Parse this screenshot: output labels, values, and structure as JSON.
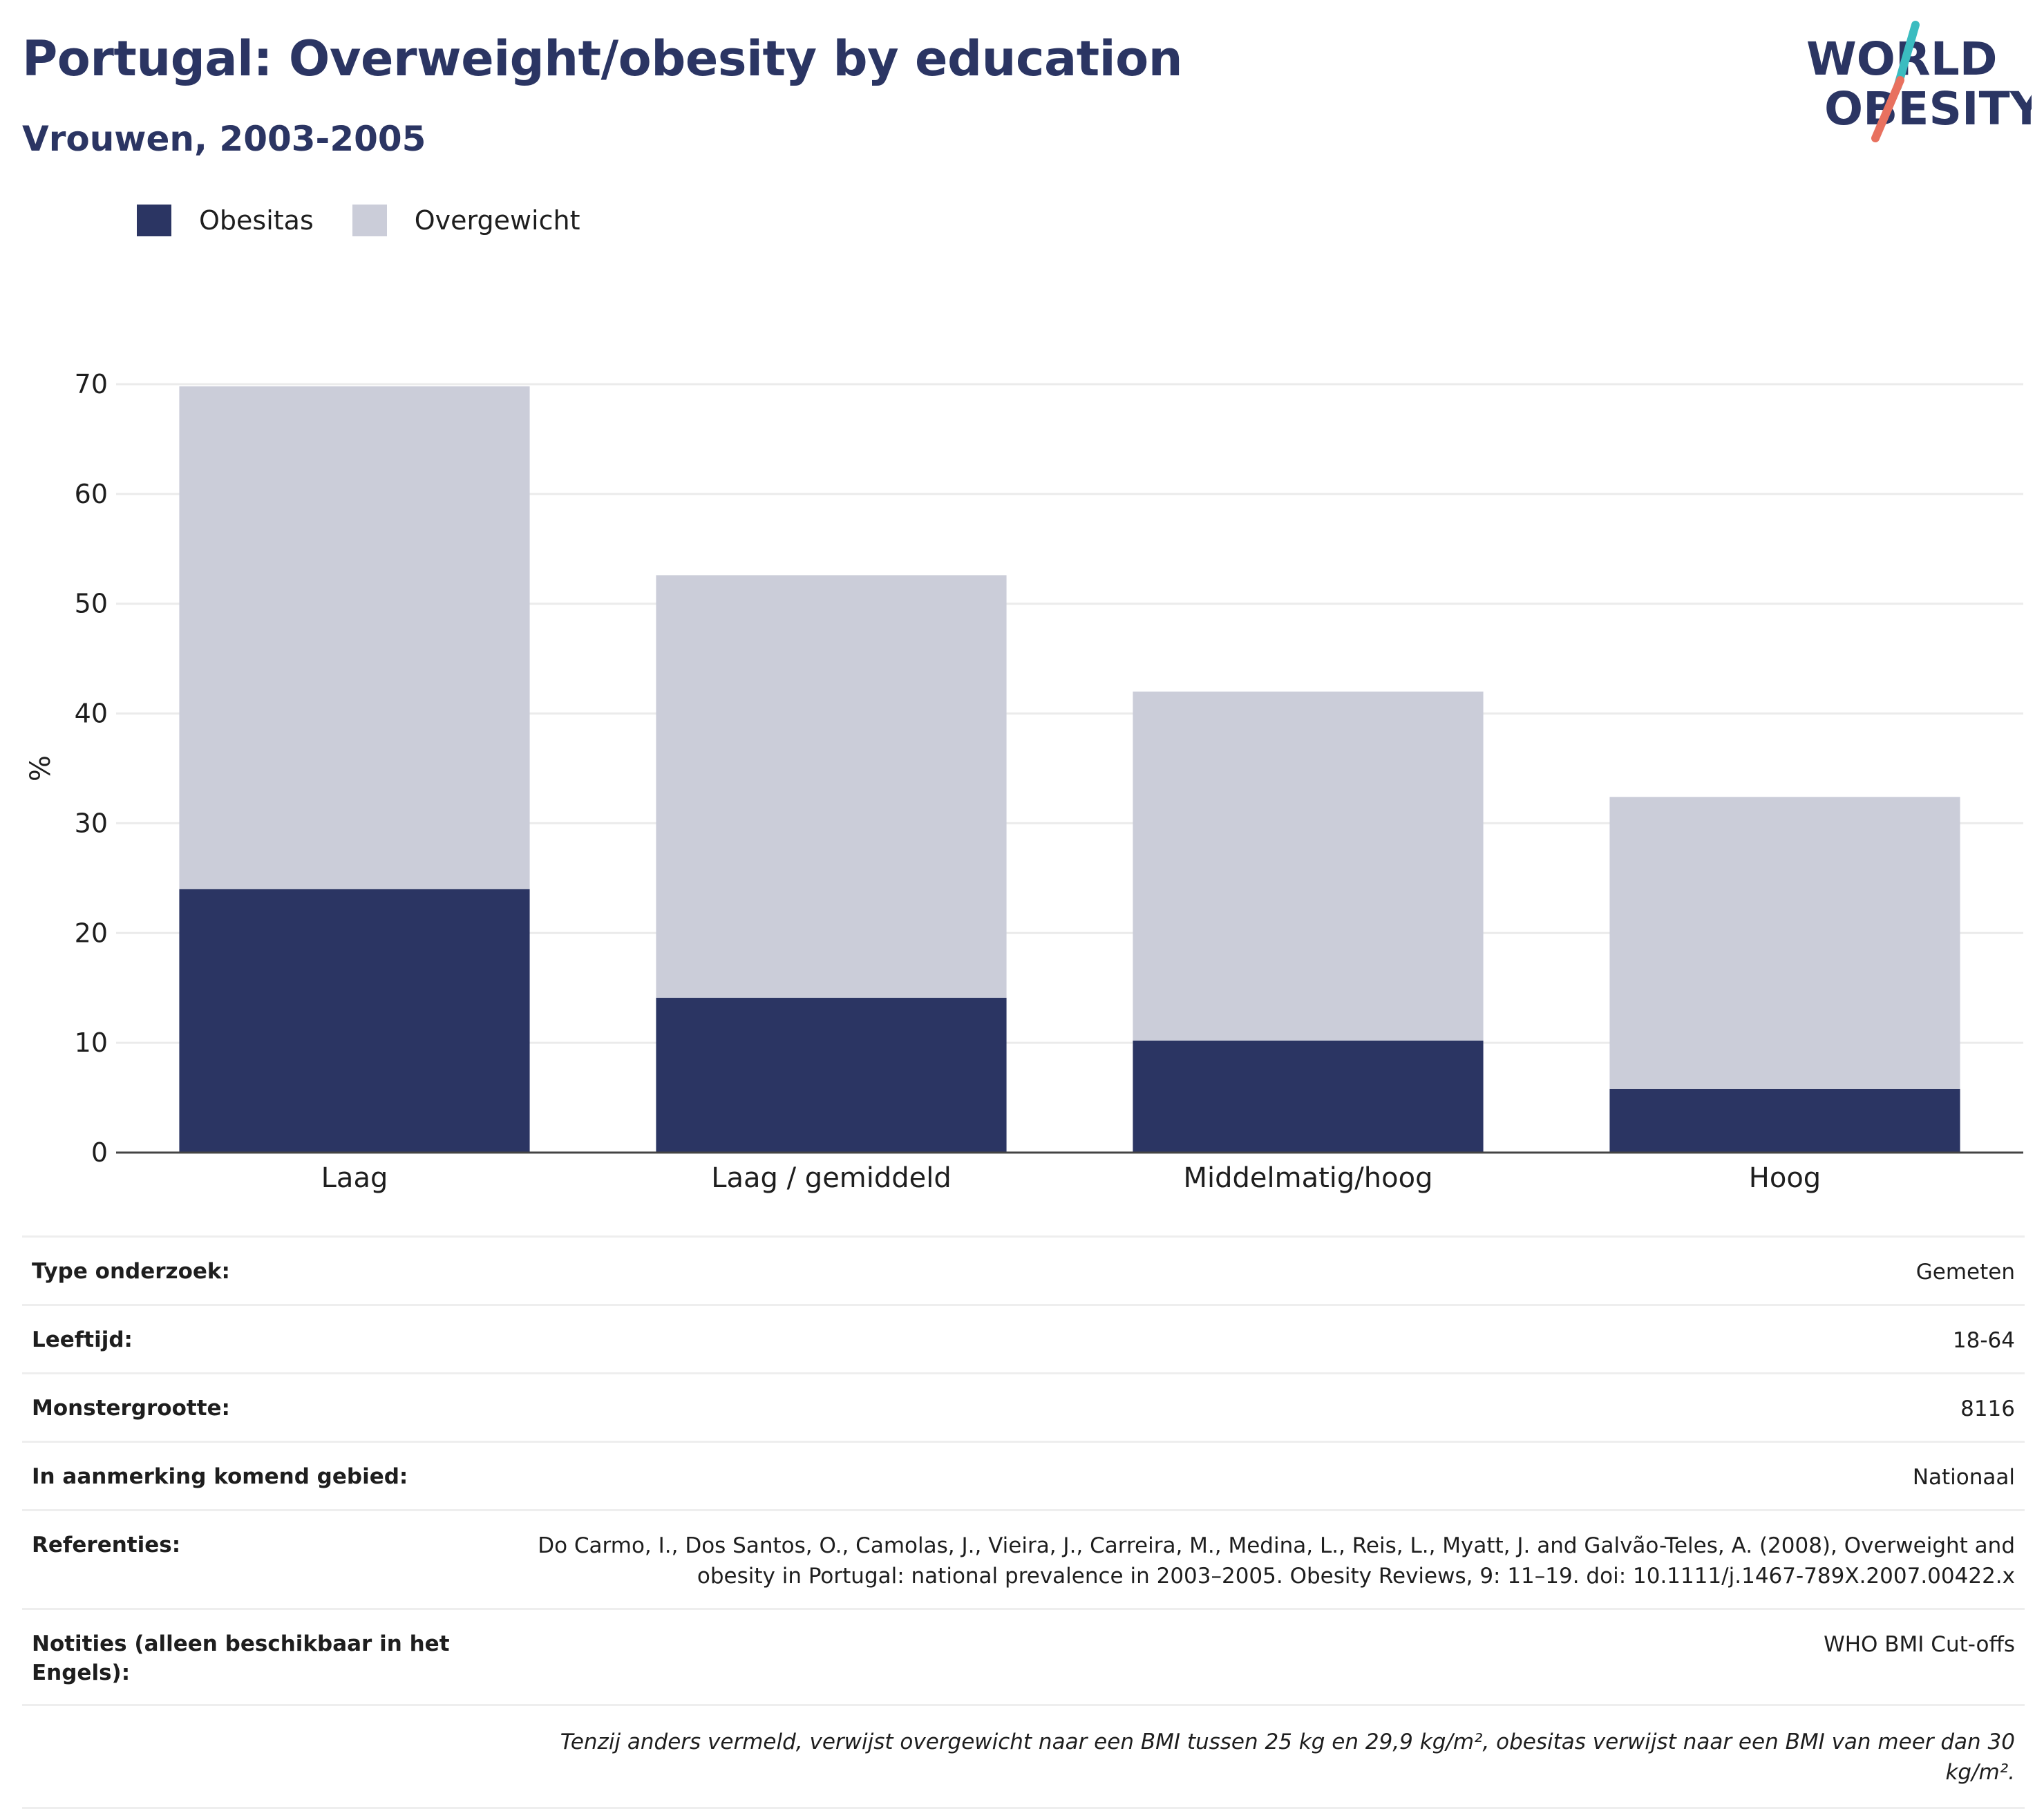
{
  "header": {
    "title": "Portugal: Overweight/obesity by education",
    "subtitle": "Vrouwen, 2003-2005"
  },
  "logo": {
    "line1": "WORLD",
    "line2": "OBESITY",
    "colors": {
      "text": "#2b3563",
      "slash_top": "#3bbcc0",
      "slash_bottom": "#e8715f"
    }
  },
  "legend": [
    {
      "label": "Obesitas",
      "color": "#2b3563"
    },
    {
      "label": "Overgewicht",
      "color": "#cbcdd9"
    }
  ],
  "chart_data": {
    "type": "bar",
    "stacked": true,
    "categories": [
      "Laag",
      "Laag / gemiddeld",
      "Middelmatig/hoog",
      "Hoog"
    ],
    "series": [
      {
        "name": "Obesitas",
        "color": "#2b3563",
        "values": [
          24.0,
          14.1,
          10.2,
          5.8
        ]
      },
      {
        "name": "Overgewicht",
        "color": "#cbcdd9",
        "values": [
          45.8,
          38.5,
          31.8,
          26.6
        ]
      }
    ],
    "totals": [
      69.8,
      52.6,
      42.0,
      32.4
    ],
    "ylabel": "%",
    "ylim": [
      0,
      70
    ],
    "yticks": [
      0,
      10,
      20,
      30,
      40,
      50,
      60,
      70
    ],
    "grid": true,
    "legend_position": "top-left"
  },
  "info": {
    "rows": [
      {
        "label": "Type onderzoek:",
        "value": "Gemeten"
      },
      {
        "label": "Leeftijd:",
        "value": "18-64"
      },
      {
        "label": "Monstergrootte:",
        "value": "8116"
      },
      {
        "label": "In aanmerking komend gebied:",
        "value": "Nationaal"
      },
      {
        "label": "Referenties:",
        "value": "Do Carmo, I., Dos Santos, O., Camolas, J., Vieira, J., Carreira, M., Medina, L., Reis, L., Myatt, J. and Galvão-Teles, A. (2008), Overweight and obesity in Portugal: national prevalence in 2003–2005. Obesity Reviews, 9: 11–19. doi: 10.1111/j.1467-789X.2007.00422.x"
      },
      {
        "label": "Notities (alleen beschikbaar in het Engels):",
        "value": "WHO BMI Cut-offs"
      }
    ],
    "note": "Tenzij anders vermeld, verwijst overgewicht naar een BMI tussen 25 kg en 29,9 kg/m², obesitas verwijst naar een BMI van meer dan 30 kg/m²."
  }
}
